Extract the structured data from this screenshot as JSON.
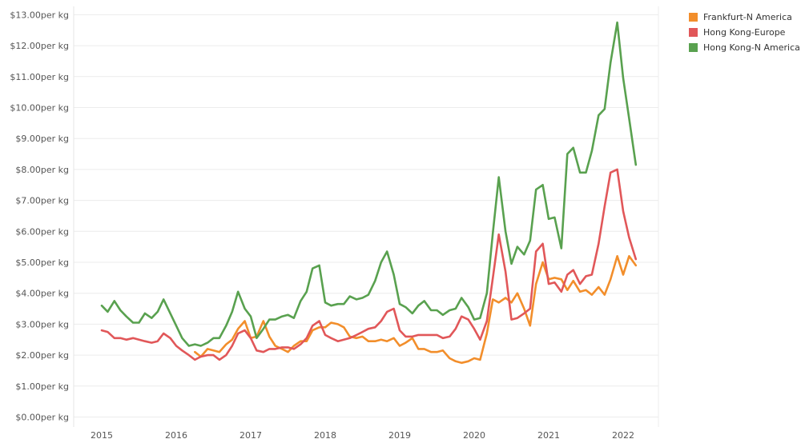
{
  "chart_data": {
    "type": "line",
    "y_tick_labels": [
      "$0.00per kg",
      "$1.00per kg",
      "$2.00per kg",
      "$3.00per kg",
      "$4.00per kg",
      "$5.00per kg",
      "$6.00per kg",
      "$7.00per kg",
      "$8.00per kg",
      "$9.00per kg",
      "$10.00per kg",
      "$11.00per kg",
      "$12.00per kg",
      "$13.00per kg"
    ],
    "y_ticks": [
      0,
      1,
      2,
      3,
      4,
      5,
      6,
      7,
      8,
      9,
      10,
      11,
      12,
      13
    ],
    "ylim": [
      -0.2,
      13.2
    ],
    "x_tick_labels": [
      "2015",
      "2016",
      "2017",
      "2018",
      "2019",
      "2020",
      "2021",
      "2022"
    ],
    "x_ticks": [
      2015,
      2016,
      2017,
      2018,
      2019,
      2020,
      2021,
      2022
    ],
    "xlim": [
      2014.72,
      2022.5
    ],
    "grid": true,
    "legend_position": "top-right",
    "series": [
      {
        "name": "Frankfurt-N America",
        "color": "#f28e2b",
        "x": [
          2016.25,
          2016.33,
          2016.42,
          2016.5,
          2016.58,
          2016.67,
          2016.75,
          2016.83,
          2016.92,
          2017.0,
          2017.08,
          2017.17,
          2017.25,
          2017.33,
          2017.42,
          2017.5,
          2017.58,
          2017.67,
          2017.75,
          2017.83,
          2017.92,
          2018.0,
          2018.08,
          2018.17,
          2018.25,
          2018.33,
          2018.42,
          2018.5,
          2018.58,
          2018.67,
          2018.75,
          2018.83,
          2018.92,
          2019.0,
          2019.08,
          2019.17,
          2019.25,
          2019.33,
          2019.42,
          2019.5,
          2019.58,
          2019.67,
          2019.75,
          2019.83,
          2019.92,
          2020.0,
          2020.08,
          2020.17,
          2020.25,
          2020.33,
          2020.42,
          2020.5,
          2020.58,
          2020.67,
          2020.75,
          2020.83,
          2020.92,
          2021.0,
          2021.08,
          2021.17,
          2021.25,
          2021.33,
          2021.42,
          2021.5,
          2021.58,
          2021.67,
          2021.75,
          2021.83,
          2021.92,
          2022.0,
          2022.08,
          2022.17
        ],
        "y": [
          2.1,
          1.95,
          2.2,
          2.15,
          2.1,
          2.35,
          2.5,
          2.85,
          3.1,
          2.55,
          2.6,
          3.1,
          2.6,
          2.3,
          2.2,
          2.1,
          2.3,
          2.45,
          2.45,
          2.8,
          2.9,
          2.9,
          3.05,
          3.0,
          2.9,
          2.6,
          2.55,
          2.6,
          2.45,
          2.45,
          2.5,
          2.45,
          2.55,
          2.3,
          2.4,
          2.55,
          2.2,
          2.2,
          2.1,
          2.1,
          2.15,
          1.9,
          1.8,
          1.75,
          1.8,
          1.9,
          1.85,
          2.7,
          3.8,
          3.7,
          3.85,
          3.7,
          4.0,
          3.5,
          2.95,
          4.3,
          5.0,
          4.45,
          4.5,
          4.45,
          4.1,
          4.4,
          4.05,
          4.1,
          3.95,
          4.2,
          3.95,
          4.45,
          5.2,
          4.6,
          5.2,
          4.9
        ]
      },
      {
        "name": "Hong Kong-Europe",
        "color": "#e15759",
        "x": [
          2015.0,
          2015.08,
          2015.17,
          2015.25,
          2015.33,
          2015.42,
          2015.5,
          2015.58,
          2015.67,
          2015.75,
          2015.83,
          2015.92,
          2016.0,
          2016.08,
          2016.17,
          2016.25,
          2016.33,
          2016.42,
          2016.5,
          2016.58,
          2016.67,
          2016.75,
          2016.83,
          2016.92,
          2017.0,
          2017.08,
          2017.17,
          2017.25,
          2017.33,
          2017.42,
          2017.5,
          2017.58,
          2017.67,
          2017.75,
          2017.83,
          2017.92,
          2018.0,
          2018.08,
          2018.17,
          2018.25,
          2018.33,
          2018.42,
          2018.5,
          2018.58,
          2018.67,
          2018.75,
          2018.83,
          2018.92,
          2019.0,
          2019.08,
          2019.17,
          2019.25,
          2019.33,
          2019.42,
          2019.5,
          2019.58,
          2019.67,
          2019.75,
          2019.83,
          2019.92,
          2020.0,
          2020.08,
          2020.17,
          2020.25,
          2020.33,
          2020.42,
          2020.5,
          2020.58,
          2020.67,
          2020.75,
          2020.83,
          2020.92,
          2021.0,
          2021.08,
          2021.17,
          2021.25,
          2021.33,
          2021.42,
          2021.5,
          2021.58,
          2021.67,
          2021.75,
          2021.83,
          2021.92,
          2022.0,
          2022.08,
          2022.17
        ],
        "y": [
          2.8,
          2.75,
          2.55,
          2.55,
          2.5,
          2.55,
          2.5,
          2.45,
          2.4,
          2.45,
          2.7,
          2.55,
          2.3,
          2.15,
          2.0,
          1.85,
          1.95,
          2.0,
          2.0,
          1.85,
          2.0,
          2.3,
          2.7,
          2.8,
          2.55,
          2.15,
          2.1,
          2.2,
          2.2,
          2.25,
          2.25,
          2.2,
          2.35,
          2.55,
          2.95,
          3.1,
          2.65,
          2.55,
          2.45,
          2.5,
          2.55,
          2.65,
          2.75,
          2.85,
          2.9,
          3.1,
          3.4,
          3.5,
          2.8,
          2.6,
          2.6,
          2.65,
          2.65,
          2.65,
          2.65,
          2.55,
          2.6,
          2.85,
          3.25,
          3.15,
          2.85,
          2.5,
          3.1,
          4.5,
          5.9,
          4.7,
          3.15,
          3.2,
          3.35,
          3.5,
          5.35,
          5.6,
          4.3,
          4.35,
          4.05,
          4.6,
          4.75,
          4.3,
          4.55,
          4.6,
          5.6,
          6.8,
          7.9,
          8.0,
          6.65,
          5.8,
          5.1
        ]
      },
      {
        "name": "Hong Kong-N America",
        "color": "#59a14f",
        "x": [
          2015.0,
          2015.08,
          2015.17,
          2015.25,
          2015.33,
          2015.42,
          2015.5,
          2015.58,
          2015.67,
          2015.75,
          2015.83,
          2015.92,
          2016.0,
          2016.08,
          2016.17,
          2016.25,
          2016.33,
          2016.42,
          2016.5,
          2016.58,
          2016.67,
          2016.75,
          2016.83,
          2016.92,
          2017.0,
          2017.08,
          2017.17,
          2017.25,
          2017.33,
          2017.42,
          2017.5,
          2017.58,
          2017.67,
          2017.75,
          2017.83,
          2017.92,
          2018.0,
          2018.08,
          2018.17,
          2018.25,
          2018.33,
          2018.42,
          2018.5,
          2018.58,
          2018.67,
          2018.75,
          2018.83,
          2018.92,
          2019.0,
          2019.08,
          2019.17,
          2019.25,
          2019.33,
          2019.42,
          2019.5,
          2019.58,
          2019.67,
          2019.75,
          2019.83,
          2019.92,
          2020.0,
          2020.08,
          2020.17,
          2020.25,
          2020.33,
          2020.42,
          2020.5,
          2020.58,
          2020.67,
          2020.75,
          2020.83,
          2020.92,
          2021.0,
          2021.08,
          2021.17,
          2021.25,
          2021.33,
          2021.42,
          2021.5,
          2021.58,
          2021.67,
          2021.75,
          2021.83,
          2021.92,
          2022.0,
          2022.08,
          2022.17
        ],
        "y": [
          3.6,
          3.4,
          3.75,
          3.45,
          3.25,
          3.05,
          3.05,
          3.35,
          3.2,
          3.4,
          3.8,
          3.35,
          2.95,
          2.55,
          2.3,
          2.35,
          2.3,
          2.4,
          2.55,
          2.55,
          2.95,
          3.4,
          4.05,
          3.5,
          3.25,
          2.55,
          2.85,
          3.15,
          3.15,
          3.25,
          3.3,
          3.2,
          3.75,
          4.05,
          4.8,
          4.9,
          3.7,
          3.6,
          3.65,
          3.65,
          3.9,
          3.8,
          3.85,
          3.95,
          4.4,
          5.0,
          5.35,
          4.6,
          3.65,
          3.55,
          3.35,
          3.6,
          3.75,
          3.45,
          3.45,
          3.3,
          3.45,
          3.5,
          3.85,
          3.55,
          3.15,
          3.2,
          4.0,
          5.95,
          7.75,
          6.0,
          4.95,
          5.5,
          5.25,
          5.7,
          7.35,
          7.5,
          6.4,
          6.45,
          5.45,
          8.5,
          8.7,
          7.9,
          7.9,
          8.6,
          9.75,
          9.95,
          11.45,
          12.75,
          10.95,
          9.65,
          8.15
        ]
      }
    ]
  }
}
